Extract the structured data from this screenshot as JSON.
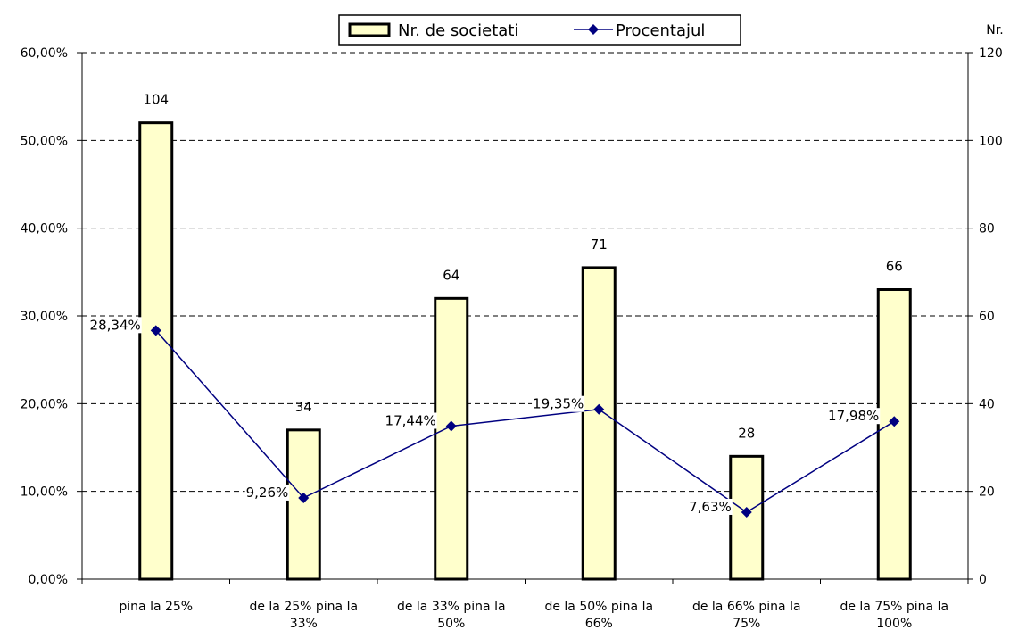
{
  "chart_data": {
    "type": "bar+line",
    "categories": [
      [
        "pina la 25%"
      ],
      [
        "de la 25% pina la",
        "33%"
      ],
      [
        "de la 33% pina la",
        "50%"
      ],
      [
        "de la 50% pina la",
        "66%"
      ],
      [
        "de la 66% pina la",
        "75%"
      ],
      [
        "de la 75% pina la",
        "100%"
      ]
    ],
    "series": [
      {
        "name": "Nr. de societati",
        "type": "bar",
        "axis": "right",
        "values": [
          104,
          34,
          64,
          71,
          28,
          66
        ],
        "labels": [
          "104",
          "34",
          "64",
          "71",
          "28",
          "66"
        ],
        "color": "#ffffcc",
        "border": "#000000"
      },
      {
        "name": "Procentajul",
        "type": "line",
        "axis": "left",
        "values": [
          28.34,
          9.26,
          17.44,
          19.35,
          7.63,
          17.98
        ],
        "labels": [
          "28,34%",
          "9,26%",
          "17,44%",
          "19,35%",
          "7,63%",
          "17,98%"
        ],
        "color": "#000080"
      }
    ],
    "y_left": {
      "ylim": [
        0,
        60
      ],
      "ticks": [
        "0,00%",
        "10,00%",
        "20,00%",
        "30,00%",
        "40,00%",
        "50,00%",
        "60,00%"
      ]
    },
    "y_right": {
      "label": "Nr.",
      "ylim": [
        0,
        120
      ],
      "ticks": [
        "0",
        "20",
        "40",
        "60",
        "80",
        "100",
        "120"
      ]
    },
    "grid": true,
    "legend_position": "top-center"
  }
}
